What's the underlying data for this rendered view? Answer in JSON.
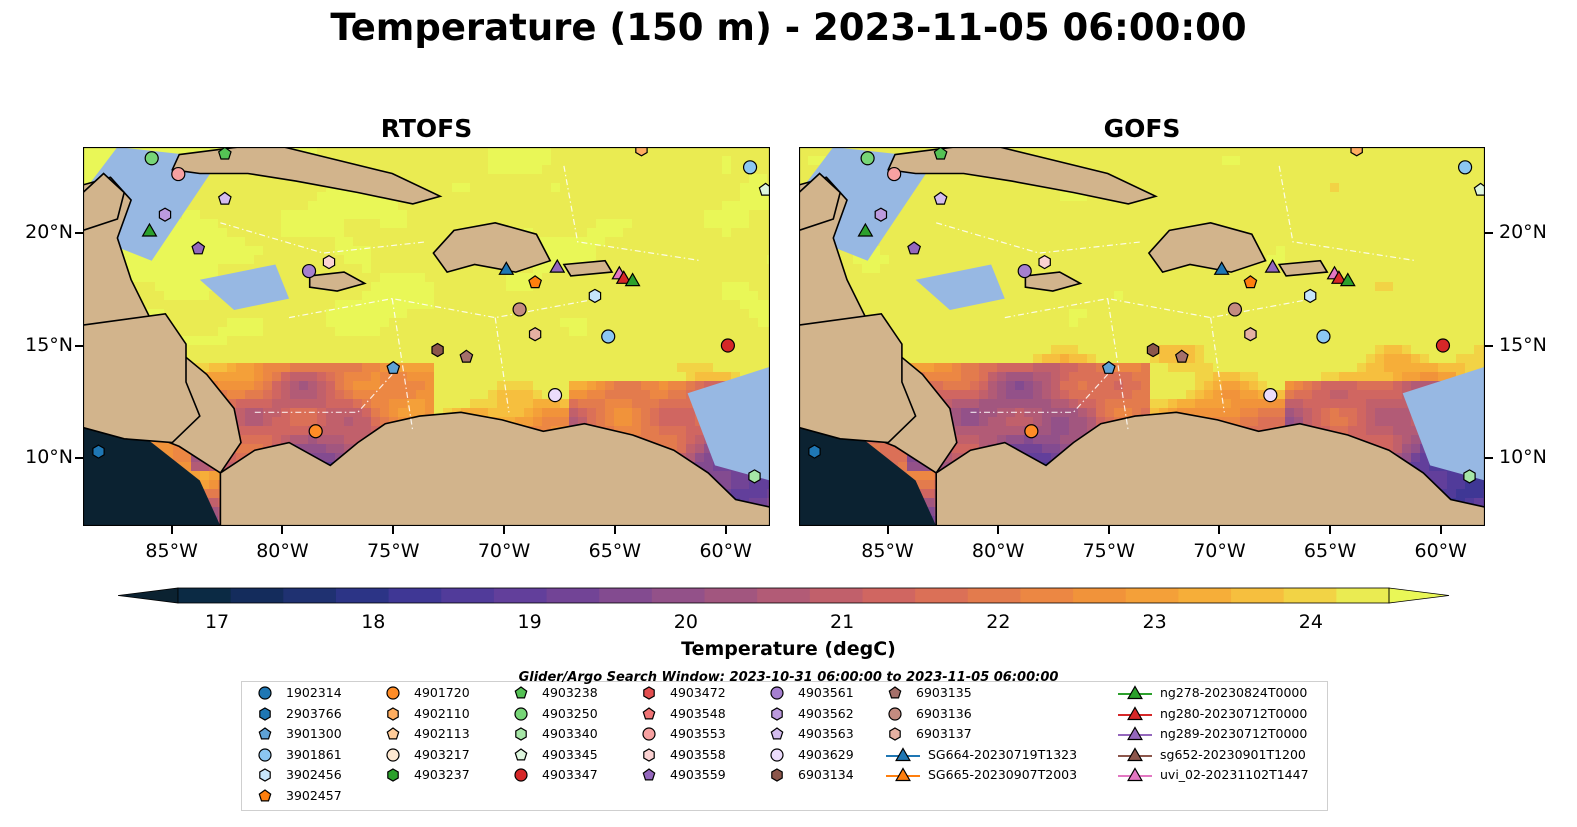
{
  "title": "Temperature (150 m) - 2023-11-05 06:00:00",
  "panels": [
    {
      "title": "RTOFS",
      "hot": 1.0
    },
    {
      "title": "GOFS",
      "hot": 0.72
    }
  ],
  "axes": {
    "lon_ticks": [
      "85°W",
      "80°W",
      "75°W",
      "70°W",
      "65°W",
      "60°W"
    ],
    "lon_values": [
      -85,
      -80,
      -75,
      -70,
      -65,
      -60
    ],
    "lat_ticks": [
      "20°N",
      "15°N",
      "10°N"
    ],
    "lat_values": [
      20,
      15,
      10
    ],
    "lon_range": [
      -89,
      -58
    ],
    "lat_range": [
      7,
      23.8
    ]
  },
  "colorbar": {
    "label": "Temperature (degC)",
    "tick_labels": [
      "17",
      "18",
      "19",
      "20",
      "21",
      "22",
      "23",
      "24"
    ],
    "tick_values": [
      17,
      18,
      19,
      20,
      21,
      22,
      23,
      24
    ],
    "range": [
      16.75,
      24.5
    ],
    "extend": "both",
    "colors": [
      "#0b2a44",
      "#142c5c",
      "#1f3171",
      "#2c3486",
      "#3f3795",
      "#513b9a",
      "#623f9b",
      "#724496",
      "#834b90",
      "#935189",
      "#a2567f",
      "#b25b76",
      "#c1606b",
      "#d06661",
      "#db7057",
      "#e37b4d",
      "#ec8743",
      "#f1933a",
      "#f4a039",
      "#f6ae39",
      "#f6bf3e",
      "#f2d345",
      "#eaeb52"
    ],
    "under_color": "#0b2231",
    "over_color": "#e9f757"
  },
  "search_window": "Glider/Argo Search Window: 2023-10-31 06:00:00 to 2023-11-05 06:00:00",
  "colors": {
    "land": "#d2b48c",
    "shelf": "#97b8e3",
    "deep_pacific": "#0b2231"
  },
  "legend": {
    "columns": [
      [
        {
          "label": "1902314",
          "marker": "circle",
          "color": "#1f77b4"
        },
        {
          "label": "2903766",
          "marker": "hexagon",
          "color": "#1f77b4"
        },
        {
          "label": "3901300",
          "marker": "pentagon",
          "color": "#5fa2d5"
        },
        {
          "label": "3901861",
          "marker": "circle",
          "color": "#8cc7f2"
        },
        {
          "label": "3902456",
          "marker": "hexagon",
          "color": "#c6e6fb"
        },
        {
          "label": "3902457",
          "marker": "pentagon",
          "color": "#ff7f0e"
        }
      ],
      [
        {
          "label": "4901720",
          "marker": "circle",
          "color": "#ff8c26"
        },
        {
          "label": "4902110",
          "marker": "hexagon",
          "color": "#ffae60"
        },
        {
          "label": "4902113",
          "marker": "pentagon",
          "color": "#ffcc99"
        },
        {
          "label": "4903217",
          "marker": "circle",
          "color": "#ffe9d2"
        },
        {
          "label": "4903237",
          "marker": "hexagon",
          "color": "#2ca02c"
        }
      ],
      [
        {
          "label": "4903238",
          "marker": "pentagon",
          "color": "#55c255"
        },
        {
          "label": "4903250",
          "marker": "circle",
          "color": "#77d677"
        },
        {
          "label": "4903340",
          "marker": "hexagon",
          "color": "#a6e6a6"
        },
        {
          "label": "4903345",
          "marker": "pentagon",
          "color": "#dff7df"
        },
        {
          "label": "4903347",
          "marker": "circle",
          "color": "#d62728"
        }
      ],
      [
        {
          "label": "4903472",
          "marker": "hexagon",
          "color": "#e34e4f"
        },
        {
          "label": "4903548",
          "marker": "pentagon",
          "color": "#ef7475"
        },
        {
          "label": "4903553",
          "marker": "circle",
          "color": "#f7a1a1"
        },
        {
          "label": "4903558",
          "marker": "hexagon",
          "color": "#fbd2d2"
        },
        {
          "label": "4903559",
          "marker": "pentagon",
          "color": "#9467bd"
        }
      ],
      [
        {
          "label": "4903561",
          "marker": "circle",
          "color": "#a57fcf"
        },
        {
          "label": "4903562",
          "marker": "hexagon",
          "color": "#bc9ade"
        },
        {
          "label": "4903563",
          "marker": "pentagon",
          "color": "#d4bcee"
        },
        {
          "label": "4903629",
          "marker": "circle",
          "color": "#ecdcfb"
        },
        {
          "label": "6903134",
          "marker": "hexagon",
          "color": "#8c564b"
        }
      ],
      [
        {
          "label": "6903135",
          "marker": "pentagon",
          "color": "#a5706a"
        },
        {
          "label": "6903136",
          "marker": "circle",
          "color": "#c48b80"
        },
        {
          "label": "6903137",
          "marker": "hexagon",
          "color": "#e5b0a2"
        },
        {
          "label": "SG664-20230719T1323",
          "marker": "triangle-line",
          "color": "#1f77b4"
        },
        {
          "label": "SG665-20230907T2003",
          "marker": "triangle-line",
          "color": "#ff7f0e"
        }
      ],
      [
        {
          "label": "ng278-20230824T0000",
          "marker": "triangle-line",
          "color": "#2ca02c"
        },
        {
          "label": "ng280-20230712T0000",
          "marker": "triangle-line",
          "color": "#d62728"
        },
        {
          "label": "ng289-20230712T0000",
          "marker": "triangle-line",
          "color": "#9467bd"
        },
        {
          "label": "sg652-20230901T1200",
          "marker": "triangle-line",
          "color": "#8c564b"
        },
        {
          "label": "uvi_02-20231102T1447",
          "marker": "triangle-line",
          "color": "#e377c2"
        }
      ]
    ]
  },
  "map_markers": [
    {
      "label": "4903250",
      "lon": -85.9,
      "lat": 23.3,
      "marker": "circle",
      "color": "#77d677"
    },
    {
      "label": "4903238",
      "lon": -82.6,
      "lat": 23.5,
      "marker": "pentagon",
      "color": "#55c255"
    },
    {
      "label": "4903553",
      "lon": -84.7,
      "lat": 22.6,
      "marker": "circle",
      "color": "#f7a1a1"
    },
    {
      "label": "4903563",
      "lon": -82.6,
      "lat": 21.5,
      "marker": "pentagon",
      "color": "#d4bcee"
    },
    {
      "label": "4903562",
      "lon": -85.3,
      "lat": 20.8,
      "marker": "hexagon",
      "color": "#bc9ade"
    },
    {
      "label": "ng278-20230824T0000",
      "lon": -86.0,
      "lat": 20.1,
      "marker": "triangle",
      "color": "#2ca02c"
    },
    {
      "label": "4903559",
      "lon": -83.8,
      "lat": 19.3,
      "marker": "pentagon",
      "color": "#9467bd"
    },
    {
      "label": "3901861",
      "lon": -58.9,
      "lat": 22.9,
      "marker": "circle",
      "color": "#8cc7f2"
    },
    {
      "label": "4903345",
      "lon": -58.2,
      "lat": 21.9,
      "marker": "pentagon",
      "color": "#dff7df"
    },
    {
      "label": "4902110",
      "lon": -63.8,
      "lat": 23.7,
      "marker": "hexagon",
      "color": "#ffae60"
    },
    {
      "label": "4903561",
      "lon": -78.8,
      "lat": 18.3,
      "marker": "circle",
      "color": "#a57fcf"
    },
    {
      "label": "4903558",
      "lon": -77.9,
      "lat": 18.7,
      "marker": "hexagon",
      "color": "#fbd2d2"
    },
    {
      "label": "SG664-20230719T1323",
      "lon": -69.9,
      "lat": 18.4,
      "marker": "triangle",
      "color": "#1f77b4"
    },
    {
      "label": "ng289-20230712T0000",
      "lon": -67.6,
      "lat": 18.5,
      "marker": "triangle",
      "color": "#9467bd"
    },
    {
      "label": "3902457",
      "lon": -68.6,
      "lat": 17.8,
      "marker": "pentagon",
      "color": "#ff7f0e"
    },
    {
      "label": "uvi_02-20231102T1447",
      "lon": -64.8,
      "lat": 18.2,
      "marker": "triangle",
      "color": "#e377c2"
    },
    {
      "label": "ng280-20230712T0000",
      "lon": -64.6,
      "lat": 18.0,
      "marker": "triangle",
      "color": "#d62728"
    },
    {
      "label": "ng278-20230824T0000",
      "lon": -64.2,
      "lat": 17.9,
      "marker": "triangle",
      "color": "#2ca02c"
    },
    {
      "label": "3902456",
      "lon": -65.9,
      "lat": 17.2,
      "marker": "hexagon",
      "color": "#c6e6fb"
    },
    {
      "label": "6903136",
      "lon": -69.3,
      "lat": 16.6,
      "marker": "circle",
      "color": "#c48b80"
    },
    {
      "label": "6903137",
      "lon": -68.6,
      "lat": 15.5,
      "marker": "hexagon",
      "color": "#e5b0a2"
    },
    {
      "label": "3901861",
      "lon": -65.3,
      "lat": 15.4,
      "marker": "circle",
      "color": "#8cc7f2"
    },
    {
      "label": "4903347",
      "lon": -59.9,
      "lat": 15.0,
      "marker": "circle",
      "color": "#d62728"
    },
    {
      "label": "6903134",
      "lon": -73.0,
      "lat": 14.8,
      "marker": "hexagon",
      "color": "#8c564b"
    },
    {
      "label": "6903135",
      "lon": -71.7,
      "lat": 14.5,
      "marker": "pentagon",
      "color": "#a5706a"
    },
    {
      "label": "3901300",
      "lon": -75.0,
      "lat": 14.0,
      "marker": "pentagon",
      "color": "#5fa2d5"
    },
    {
      "label": "4903629",
      "lon": -67.7,
      "lat": 12.8,
      "marker": "circle",
      "color": "#ecdcfb"
    },
    {
      "label": "4901720",
      "lon": -78.5,
      "lat": 11.2,
      "marker": "circle",
      "color": "#ff8c26"
    },
    {
      "label": "2903766",
      "lon": -88.3,
      "lat": 10.3,
      "marker": "hexagon",
      "color": "#1f77b4"
    },
    {
      "label": "4903340",
      "lon": -58.7,
      "lat": 9.2,
      "marker": "hexagon",
      "color": "#a6e6a6"
    }
  ]
}
